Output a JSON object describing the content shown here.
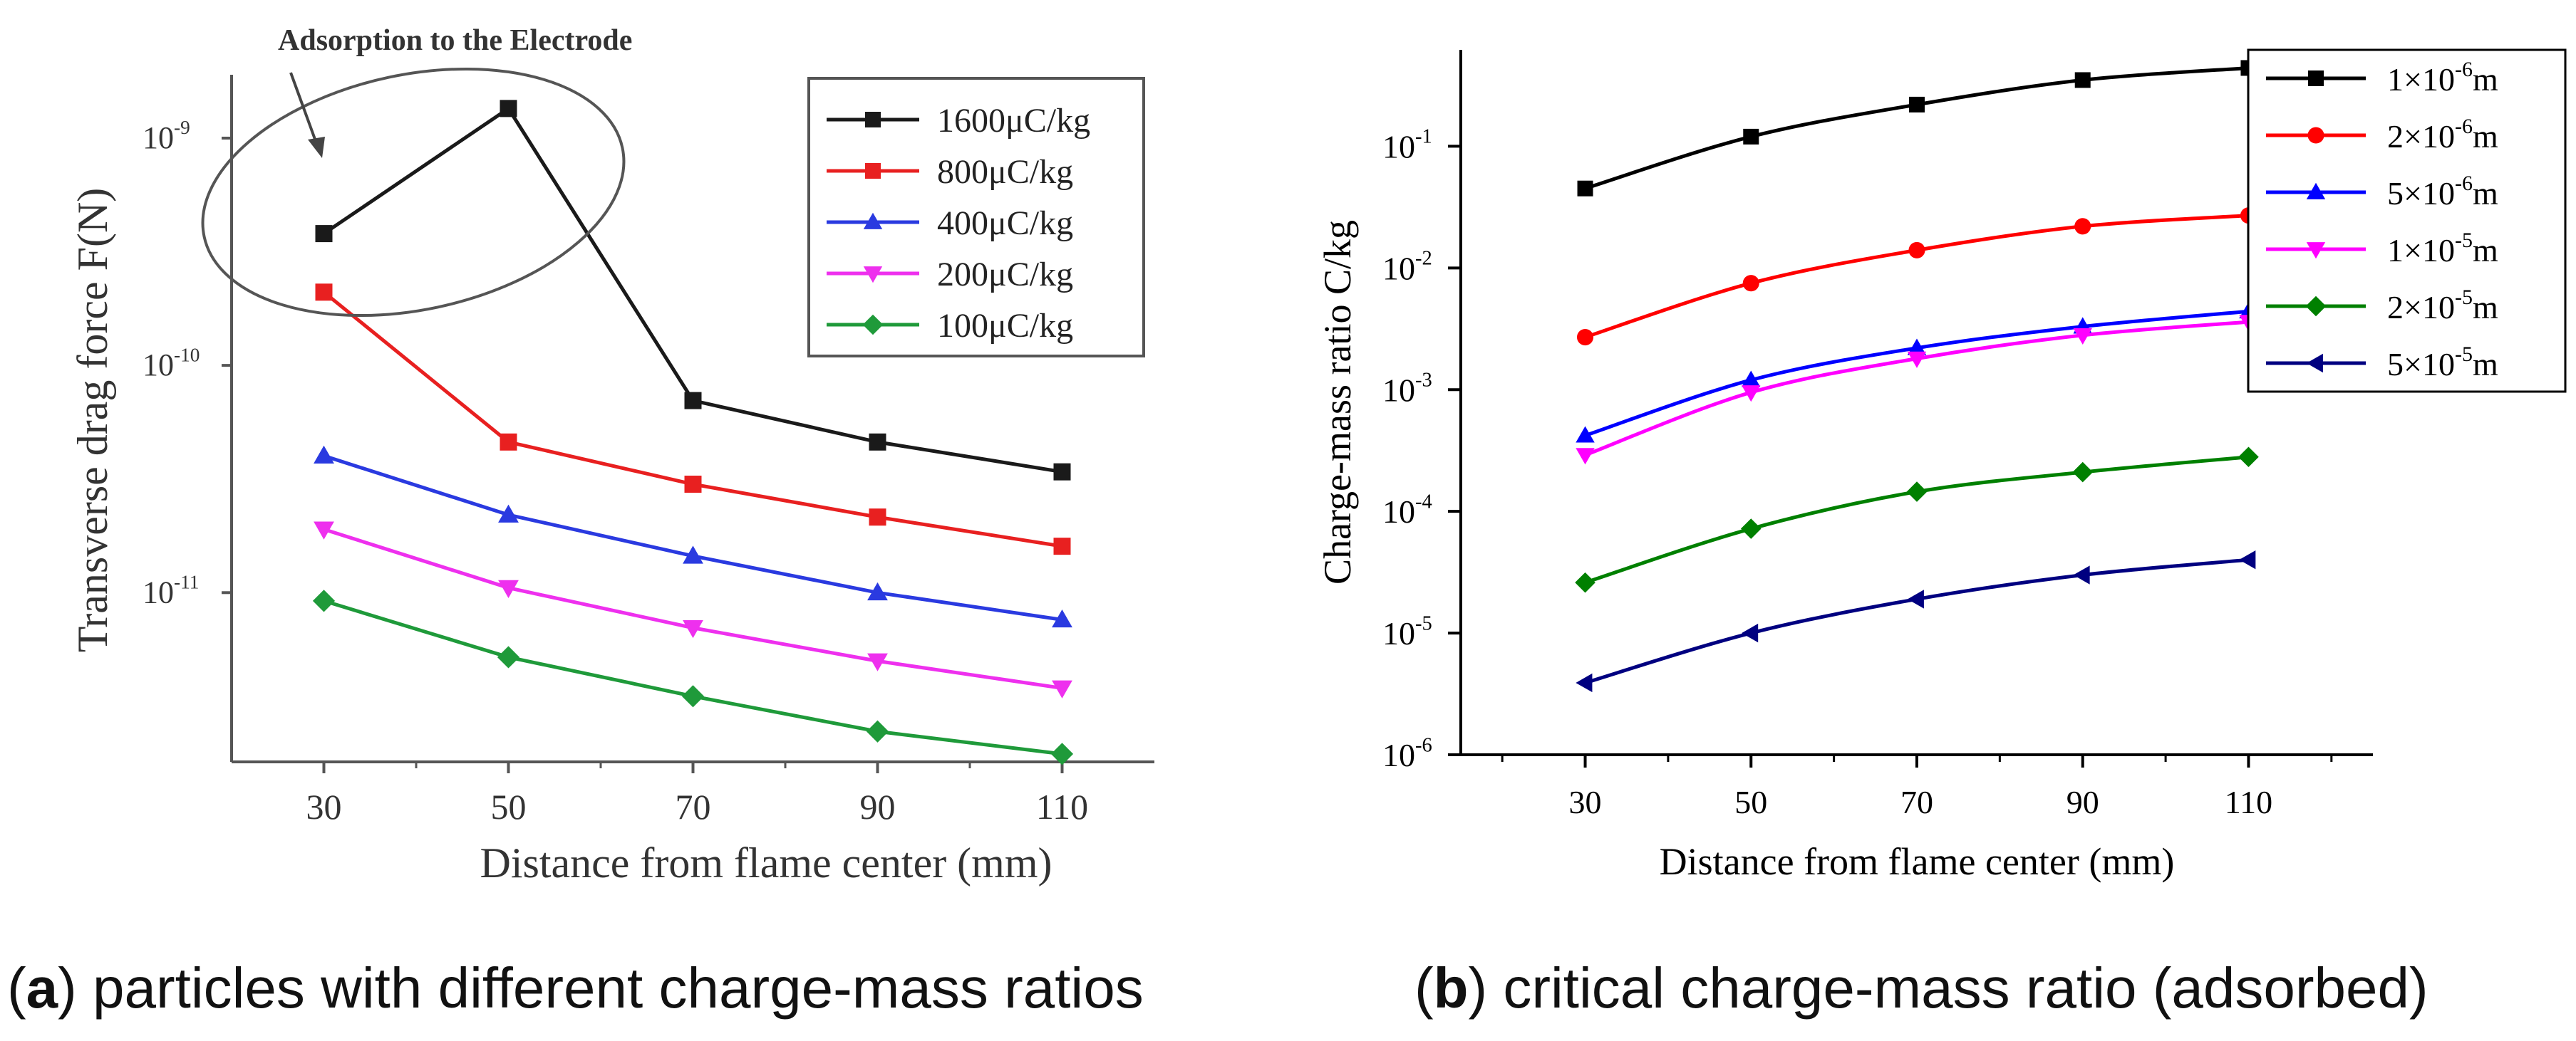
{
  "chart_data": [
    {
      "panel": "a",
      "type": "line",
      "scale": "log",
      "title": "",
      "caption_letter": "a",
      "caption_text": ") particles with different charge-mass ratios",
      "caption_open": "(",
      "xlabel": "Distance from flame center (mm)",
      "ylabel": "Transverse drag force F(N)",
      "x": [
        30,
        50,
        70,
        90,
        110
      ],
      "xticks": [
        "30",
        "50",
        "70",
        "90",
        "110"
      ],
      "xlim": [
        20,
        120
      ],
      "ylim": [
        1.8e-12,
        1.9e-09
      ],
      "yticks": [
        {
          "value": 1e-09,
          "mant": "10",
          "exp": "-9"
        },
        {
          "value": 1e-10,
          "mant": "10",
          "exp": "-10"
        },
        {
          "value": 1e-11,
          "mant": "10",
          "exp": "-11"
        }
      ],
      "annotation": "Adsorption to the Electrode",
      "series": [
        {
          "name": "1600μC/kg",
          "color": "#1a1a1a",
          "marker": "square",
          "values": [
            3.8e-10,
            1.35e-09,
            7e-11,
            4.6e-11,
            3.4e-11
          ]
        },
        {
          "name": "800μC/kg",
          "color": "#e82020",
          "marker": "square",
          "values": [
            2.1e-10,
            4.6e-11,
            3e-11,
            2.15e-11,
            1.6e-11
          ]
        },
        {
          "name": "400μC/kg",
          "color": "#2a3ae0",
          "marker": "triangle-up",
          "values": [
            4e-11,
            2.2e-11,
            1.45e-11,
            1e-11,
            7.6e-12
          ]
        },
        {
          "name": "200μC/kg",
          "color": "#ee30ee",
          "marker": "triangle-down",
          "values": [
            1.9e-11,
            1.05e-11,
            7e-12,
            5e-12,
            3.8e-12
          ]
        },
        {
          "name": "100μC/kg",
          "color": "#1f9a3a",
          "marker": "diamond",
          "values": [
            9.2e-12,
            5.2e-12,
            3.5e-12,
            2.45e-12,
            1.95e-12
          ]
        }
      ]
    },
    {
      "panel": "b",
      "type": "line",
      "scale": "log",
      "title": "",
      "caption_letter": "b",
      "caption_text": ") critical charge-mass ratio (adsorbed)",
      "caption_open": "(",
      "xlabel": "Distance from flame center (mm)",
      "ylabel": "Charge-mass ratio  C/kg",
      "x": [
        30,
        50,
        70,
        90,
        110
      ],
      "xticks": [
        "30",
        "50",
        "70",
        "90",
        "110"
      ],
      "xlim": [
        15,
        125
      ],
      "ylim": [
        1e-06,
        0.62
      ],
      "yticks": [
        {
          "value": 0.1,
          "mant": "10",
          "exp": "-1"
        },
        {
          "value": 0.01,
          "mant": "10",
          "exp": "-2"
        },
        {
          "value": 0.001,
          "mant": "10",
          "exp": "-3"
        },
        {
          "value": 0.0001,
          "mant": "10",
          "exp": "-4"
        },
        {
          "value": 1e-05,
          "mant": "10",
          "exp": "-5"
        },
        {
          "value": 1e-06,
          "mant": "10",
          "exp": "-6"
        }
      ],
      "series": [
        {
          "name": "1×10⁻⁶m",
          "label_mant": "1×10",
          "label_exp": "-6",
          "label_unit": "m",
          "color": "#000000",
          "marker": "square",
          "values": [
            0.045,
            0.12,
            0.22,
            0.35,
            0.44
          ]
        },
        {
          "name": "2×10⁻⁶m",
          "label_mant": "2×10",
          "label_exp": "-6",
          "label_unit": "m",
          "color": "#ff0000",
          "marker": "circle",
          "values": [
            0.0027,
            0.0075,
            0.014,
            0.022,
            0.027
          ]
        },
        {
          "name": "5×10⁻⁶m",
          "label_mant": "5×10",
          "label_exp": "-6",
          "label_unit": "m",
          "color": "#0000ff",
          "marker": "triangle-up",
          "values": [
            0.00042,
            0.0012,
            0.0022,
            0.0033,
            0.0044
          ]
        },
        {
          "name": "1×10⁻⁵m",
          "label_mant": "1×10",
          "label_exp": "-5",
          "label_unit": "m",
          "color": "#ff00ff",
          "marker": "triangle-down",
          "values": [
            0.00029,
            0.00095,
            0.0018,
            0.0028,
            0.0036
          ]
        },
        {
          "name": "2×10⁻⁵m",
          "label_mant": "2×10",
          "label_exp": "-5",
          "label_unit": "m",
          "color": "#008000",
          "marker": "diamond",
          "values": [
            2.6e-05,
            7.2e-05,
            0.000145,
            0.00021,
            0.00028
          ]
        },
        {
          "name": "5×10⁻⁵m",
          "label_mant": "5×10",
          "label_exp": "-5",
          "label_unit": "m",
          "color": "#000080",
          "marker": "triangle-left",
          "values": [
            3.9e-06,
            1e-05,
            1.9e-05,
            3e-05,
            4e-05
          ]
        }
      ]
    }
  ]
}
